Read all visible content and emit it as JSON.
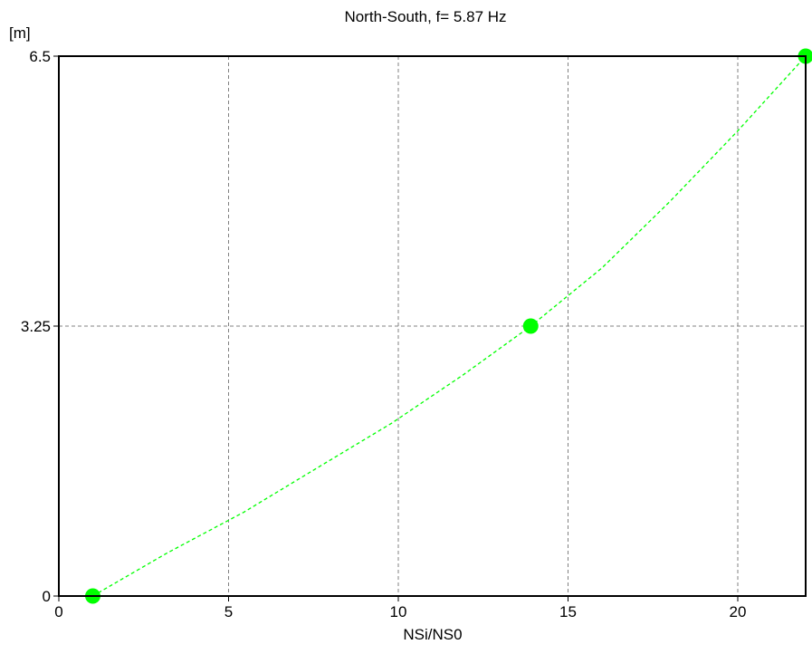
{
  "chart_data": {
    "type": "scatter",
    "title": "North-South, f= 5.87 Hz",
    "xlabel": "NSi/NS0",
    "ylabel": "[m]",
    "xlim": [
      0,
      22
    ],
    "ylim": [
      0,
      6.5
    ],
    "x_ticks": [
      0,
      5,
      10,
      15,
      20
    ],
    "x_tick_labels": [
      "0",
      "5",
      "10",
      "15",
      "20"
    ],
    "y_ticks": [
      0,
      3.25,
      6.5
    ],
    "y_tick_labels": [
      "0",
      "3.25",
      "6.5"
    ],
    "grid": true,
    "grid_style": "dashed",
    "legend": false,
    "series": [
      {
        "style": "markers with dashed connecting line",
        "color": "#00ff00",
        "points": [
          {
            "x": 1,
            "y": 0
          },
          {
            "x": 13.9,
            "y": 3.25
          },
          {
            "x": 22,
            "y": 6.5
          }
        ],
        "curve": [
          {
            "x": 1,
            "y": 0
          },
          {
            "x": 3.2,
            "y": 0.52
          },
          {
            "x": 5.45,
            "y": 1.01
          },
          {
            "x": 7.6,
            "y": 1.54
          },
          {
            "x": 9.8,
            "y": 2.08
          },
          {
            "x": 11.9,
            "y": 2.66
          },
          {
            "x": 13.9,
            "y": 3.25
          },
          {
            "x": 16.0,
            "y": 3.95
          },
          {
            "x": 18.0,
            "y": 4.75
          },
          {
            "x": 20.0,
            "y": 5.6
          },
          {
            "x": 22,
            "y": 6.5
          }
        ]
      }
    ]
  },
  "colors": {
    "series": "#00ff00",
    "grid": "#808080",
    "axes": "#000000",
    "background": "#ffffff"
  }
}
